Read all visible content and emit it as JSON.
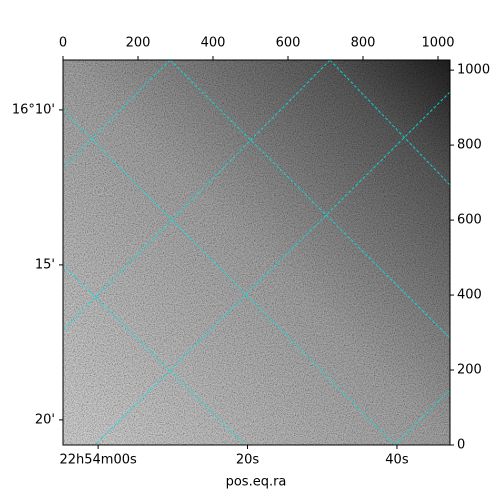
{
  "chart_data": {
    "type": "image",
    "xlabel": "pos.eq.ra",
    "xlim": [
      0,
      1032
    ],
    "xticks": [
      0,
      200,
      400,
      600,
      800,
      1000
    ],
    "ylim": [
      0,
      1027
    ],
    "yticks": [
      0,
      200,
      400,
      600,
      800,
      1000
    ],
    "ralim": [
      -4.7,
      47.1
    ],
    "raticks": [
      {
        "value": 0,
        "label": "22h54m00s"
      },
      {
        "value": 20,
        "label": "20s"
      },
      {
        "value": 40,
        "label": "40s"
      }
    ],
    "declim": [
      8.39,
      20.81
    ],
    "decticks": [
      {
        "value": 10,
        "label": "16°10'"
      },
      {
        "value": 15,
        "label": "15'"
      },
      {
        "value": 20,
        "label": "20'"
      }
    ]
  }
}
